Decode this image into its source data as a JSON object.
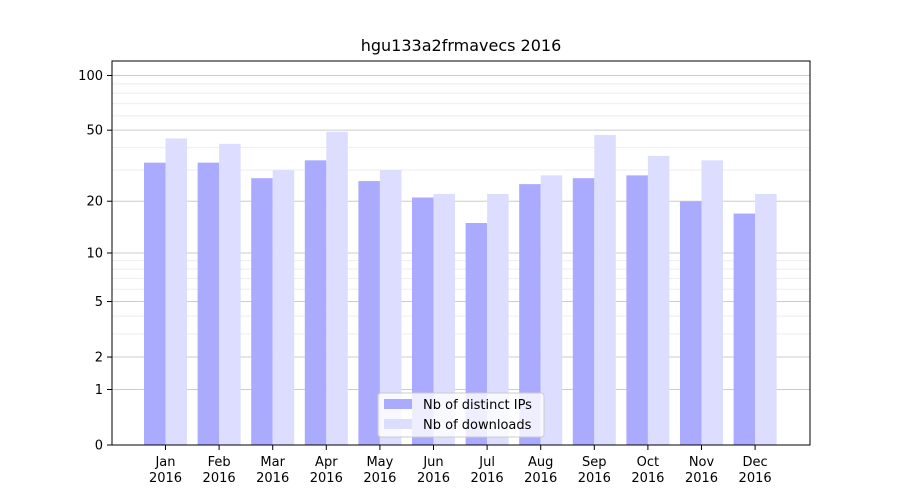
{
  "chart_data": {
    "type": "bar",
    "title": "hgu133a2frmavecs 2016",
    "categories": [
      "Jan\n2016",
      "Feb\n2016",
      "Mar\n2016",
      "Apr\n2016",
      "May\n2016",
      "Jun\n2016",
      "Jul\n2016",
      "Aug\n2016",
      "Sep\n2016",
      "Oct\n2016",
      "Nov\n2016",
      "Dec\n2016"
    ],
    "series": [
      {
        "name": "Nb of distinct IPs",
        "color": "#aaaaff",
        "values": [
          33,
          33,
          27,
          34,
          26,
          21,
          15,
          25,
          27,
          28,
          20,
          17
        ]
      },
      {
        "name": "Nb of downloads",
        "color": "#ddddff",
        "values": [
          45,
          42,
          30,
          49,
          30,
          22,
          22,
          28,
          47,
          36,
          34,
          22
        ]
      }
    ],
    "xlabel": "",
    "ylabel": "",
    "yscale": "log(1+y)",
    "ylim": [
      0,
      120
    ],
    "yticks": [
      0,
      1,
      2,
      5,
      10,
      20,
      50,
      100
    ],
    "grid": true,
    "legend_position": "bottom-center"
  }
}
